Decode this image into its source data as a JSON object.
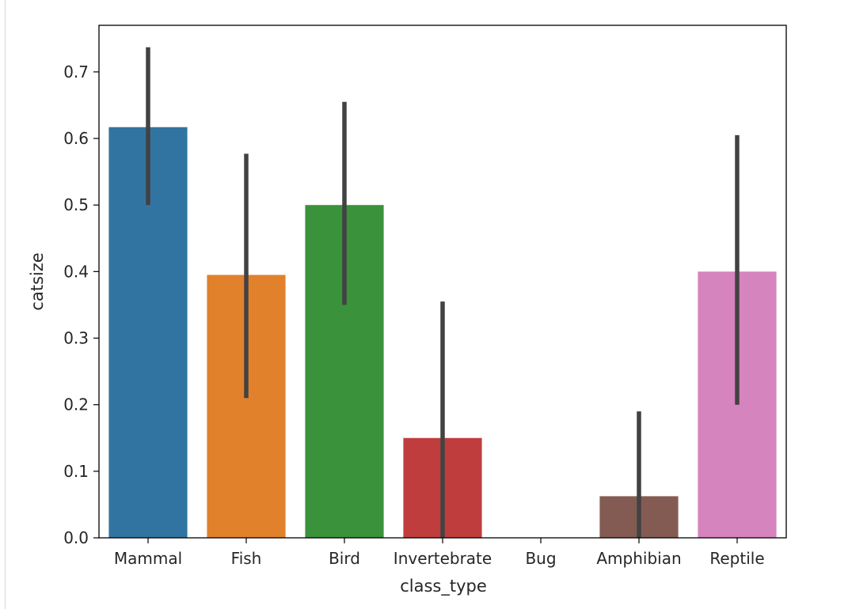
{
  "chart_data": {
    "type": "bar",
    "title": "",
    "xlabel": "class_type",
    "ylabel": "catsize",
    "categories": [
      "Mammal",
      "Fish",
      "Bird",
      "Invertebrate",
      "Bug",
      "Amphibian",
      "Reptile"
    ],
    "values": [
      0.617,
      0.395,
      0.5,
      0.15,
      0.0,
      0.0625,
      0.4
    ],
    "error_low": [
      0.5,
      0.21,
      0.35,
      0.0,
      0.0,
      0.0,
      0.2
    ],
    "error_high": [
      0.737,
      0.577,
      0.655,
      0.355,
      0.0,
      0.19,
      0.605
    ],
    "colors": [
      "#3274a1",
      "#e1812c",
      "#3a923a",
      "#c03d3e",
      "#9372b2",
      "#845b53",
      "#d684bd"
    ],
    "error_color": "#424242",
    "ylim": [
      0.0,
      0.77
    ],
    "yticks": [
      "0.0",
      "0.1",
      "0.2",
      "0.3",
      "0.4",
      "0.5",
      "0.6",
      "0.7"
    ],
    "grid": false,
    "legend": "none"
  }
}
